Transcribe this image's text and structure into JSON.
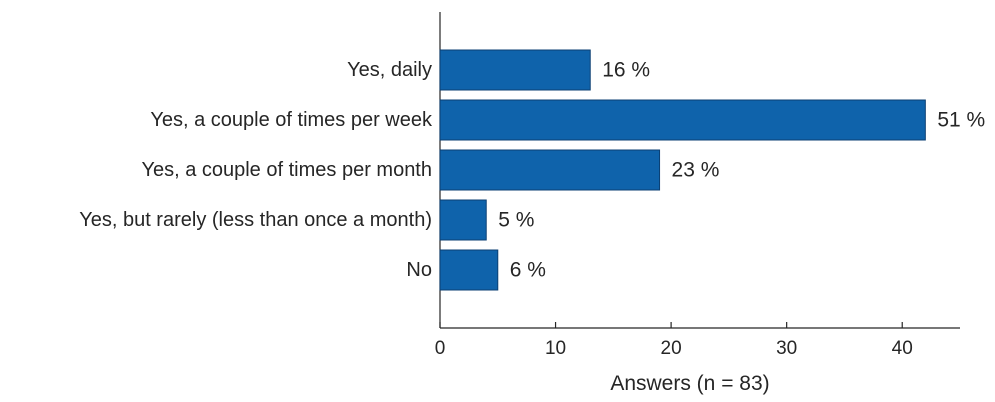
{
  "chart_data": {
    "type": "bar",
    "orientation": "horizontal",
    "categories": [
      "Yes, daily",
      "Yes, a couple of times per week",
      "Yes, a couple of times per month",
      "Yes, but rarely (less than once a month)",
      "No"
    ],
    "values": [
      13,
      42,
      19,
      4,
      5
    ],
    "data_labels": [
      "16 %",
      "51 %",
      "23 %",
      "5 %",
      "6 %"
    ],
    "xlabel": "Answers (n = 83)",
    "xlim": [
      0,
      45
    ],
    "xticks": [
      0,
      10,
      20,
      30,
      40
    ],
    "xtick_labels": [
      "0",
      "10",
      "20",
      "30",
      "40"
    ],
    "grid": false,
    "bar_color": "#0f63ab"
  }
}
